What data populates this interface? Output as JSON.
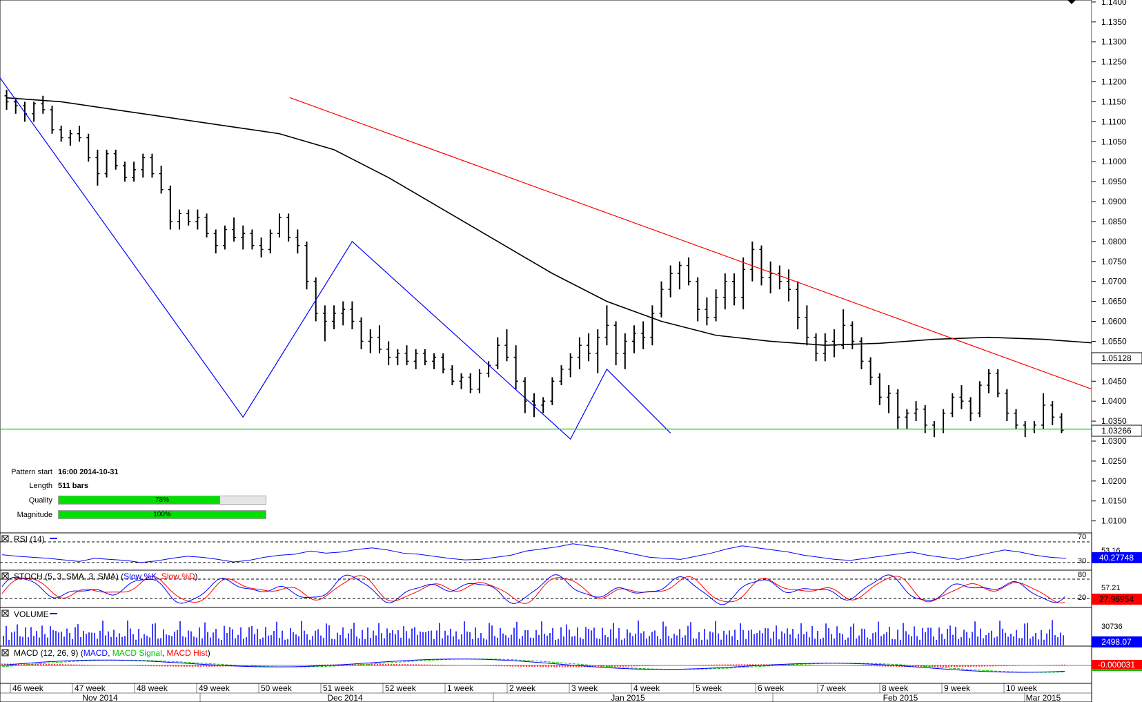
{
  "chart_data": {
    "type": "candlestick-with-indicators",
    "main": {
      "ylim": [
        1.007,
        1.1405
      ],
      "y_ticks": [
        "1.1400",
        "1.1350",
        "1.1300",
        "1.1250",
        "1.1200",
        "1.1150",
        "1.1100",
        "1.1050",
        "1.1000",
        "1.0950",
        "1.0900",
        "1.0850",
        "1.0800",
        "1.0750",
        "1.0700",
        "1.0650",
        "1.0600",
        "1.0550",
        "1.0500",
        "1.0450",
        "1.0400",
        "1.0350",
        "1.0300",
        "1.0250",
        "1.0200",
        "1.0150",
        "1.0100"
      ],
      "last_price_label": "1.03266",
      "last_price": 1.03266,
      "ma_label": "1.05128",
      "ma_value": 1.05128,
      "support_level": 1.033,
      "ohlc_bars": [
        [
          1.1165,
          1.118,
          1.113,
          1.115
        ],
        [
          1.115,
          1.116,
          1.112,
          1.114
        ],
        [
          1.114,
          1.115,
          1.11,
          1.112
        ],
        [
          1.112,
          1.115,
          1.11,
          1.1145
        ],
        [
          1.1145,
          1.1165,
          1.112,
          1.113
        ],
        [
          1.113,
          1.114,
          1.107,
          1.108
        ],
        [
          1.108,
          1.109,
          1.105,
          1.106
        ],
        [
          1.106,
          1.108,
          1.104,
          1.107
        ],
        [
          1.107,
          1.109,
          1.105,
          1.106
        ],
        [
          1.106,
          1.107,
          1.1,
          1.101
        ],
        [
          1.101,
          1.103,
          1.094,
          1.097
        ],
        [
          1.097,
          1.103,
          1.096,
          1.102
        ],
        [
          1.102,
          1.103,
          1.098,
          1.099
        ],
        [
          1.099,
          1.1,
          1.095,
          1.096
        ],
        [
          1.096,
          1.1,
          1.095,
          1.098
        ],
        [
          1.098,
          1.102,
          1.096,
          1.101
        ],
        [
          1.101,
          1.102,
          1.096,
          1.097
        ],
        [
          1.097,
          1.099,
          1.092,
          1.093
        ],
        [
          1.093,
          1.094,
          1.083,
          1.085
        ],
        [
          1.085,
          1.088,
          1.083,
          1.087
        ],
        [
          1.087,
          1.088,
          1.084,
          1.085
        ],
        [
          1.085,
          1.088,
          1.083,
          1.086
        ],
        [
          1.086,
          1.087,
          1.081,
          1.082
        ],
        [
          1.082,
          1.083,
          1.077,
          1.079
        ],
        [
          1.079,
          1.084,
          1.078,
          1.083
        ],
        [
          1.083,
          1.086,
          1.08,
          1.081
        ],
        [
          1.081,
          1.084,
          1.078,
          1.082
        ],
        [
          1.082,
          1.083,
          1.078,
          1.079
        ],
        [
          1.079,
          1.081,
          1.076,
          1.078
        ],
        [
          1.078,
          1.083,
          1.077,
          1.082
        ],
        [
          1.082,
          1.087,
          1.081,
          1.086
        ],
        [
          1.086,
          1.087,
          1.08,
          1.081
        ],
        [
          1.081,
          1.083,
          1.077,
          1.079
        ],
        [
          1.079,
          1.08,
          1.068,
          1.07
        ],
        [
          1.07,
          1.071,
          1.06,
          1.062
        ],
        [
          1.062,
          1.064,
          1.055,
          1.06
        ],
        [
          1.06,
          1.064,
          1.058,
          1.062
        ],
        [
          1.062,
          1.065,
          1.059,
          1.063
        ],
        [
          1.063,
          1.065,
          1.058,
          1.06
        ],
        [
          1.06,
          1.061,
          1.053,
          1.055
        ],
        [
          1.055,
          1.058,
          1.052,
          1.056
        ],
        [
          1.056,
          1.059,
          1.052,
          1.053
        ],
        [
          1.053,
          1.055,
          1.049,
          1.051
        ],
        [
          1.051,
          1.053,
          1.049,
          1.052
        ],
        [
          1.052,
          1.054,
          1.049,
          1.05
        ],
        [
          1.05,
          1.053,
          1.048,
          1.052
        ],
        [
          1.052,
          1.053,
          1.049,
          1.05
        ],
        [
          1.05,
          1.052,
          1.048,
          1.051
        ],
        [
          1.051,
          1.052,
          1.047,
          1.048
        ],
        [
          1.048,
          1.049,
          1.044,
          1.045
        ],
        [
          1.045,
          1.047,
          1.043,
          1.046
        ],
        [
          1.046,
          1.047,
          1.042,
          1.043
        ],
        [
          1.043,
          1.048,
          1.042,
          1.047
        ],
        [
          1.047,
          1.05,
          1.046,
          1.049
        ],
        [
          1.049,
          1.056,
          1.048,
          1.054
        ],
        [
          1.054,
          1.058,
          1.05,
          1.051
        ],
        [
          1.051,
          1.054,
          1.043,
          1.045
        ],
        [
          1.045,
          1.046,
          1.037,
          1.04
        ],
        [
          1.04,
          1.042,
          1.036,
          1.039
        ],
        [
          1.039,
          1.041,
          1.037,
          1.04
        ],
        [
          1.04,
          1.046,
          1.039,
          1.045
        ],
        [
          1.045,
          1.049,
          1.044,
          1.048
        ],
        [
          1.048,
          1.052,
          1.046,
          1.051
        ],
        [
          1.051,
          1.056,
          1.048,
          1.054
        ],
        [
          1.054,
          1.057,
          1.05,
          1.052
        ],
        [
          1.052,
          1.058,
          1.047,
          1.056
        ],
        [
          1.056,
          1.064,
          1.054,
          1.059
        ],
        [
          1.059,
          1.06,
          1.049,
          1.052
        ],
        [
          1.052,
          1.057,
          1.048,
          1.055
        ],
        [
          1.055,
          1.059,
          1.052,
          1.057
        ],
        [
          1.057,
          1.06,
          1.053,
          1.056
        ],
        [
          1.056,
          1.064,
          1.054,
          1.062
        ],
        [
          1.062,
          1.07,
          1.061,
          1.068
        ],
        [
          1.068,
          1.074,
          1.066,
          1.072
        ],
        [
          1.072,
          1.075,
          1.068,
          1.074
        ],
        [
          1.074,
          1.076,
          1.069,
          1.07
        ],
        [
          1.07,
          1.071,
          1.06,
          1.063
        ],
        [
          1.063,
          1.066,
          1.059,
          1.061
        ],
        [
          1.061,
          1.068,
          1.06,
          1.066
        ],
        [
          1.066,
          1.072,
          1.063,
          1.07
        ],
        [
          1.07,
          1.072,
          1.064,
          1.066
        ],
        [
          1.066,
          1.076,
          1.063,
          1.073
        ],
        [
          1.073,
          1.08,
          1.07,
          1.078
        ],
        [
          1.078,
          1.079,
          1.069,
          1.071
        ],
        [
          1.071,
          1.075,
          1.067,
          1.072
        ],
        [
          1.072,
          1.074,
          1.068,
          1.07
        ],
        [
          1.07,
          1.073,
          1.065,
          1.068
        ],
        [
          1.068,
          1.07,
          1.058,
          1.061
        ],
        [
          1.061,
          1.064,
          1.054,
          1.056
        ],
        [
          1.056,
          1.057,
          1.05,
          1.052
        ],
        [
          1.052,
          1.057,
          1.05,
          1.055
        ],
        [
          1.055,
          1.058,
          1.051,
          1.054
        ],
        [
          1.054,
          1.063,
          1.053,
          1.059
        ],
        [
          1.059,
          1.06,
          1.053,
          1.055
        ],
        [
          1.055,
          1.056,
          1.048,
          1.05
        ],
        [
          1.05,
          1.051,
          1.044,
          1.046
        ],
        [
          1.046,
          1.047,
          1.039,
          1.041
        ],
        [
          1.041,
          1.044,
          1.037,
          1.042
        ],
        [
          1.042,
          1.043,
          1.033,
          1.036
        ],
        [
          1.036,
          1.038,
          1.033,
          1.037
        ],
        [
          1.037,
          1.04,
          1.035,
          1.038
        ],
        [
          1.038,
          1.039,
          1.032,
          1.034
        ],
        [
          1.034,
          1.035,
          1.031,
          1.033
        ],
        [
          1.033,
          1.038,
          1.032,
          1.037
        ],
        [
          1.037,
          1.042,
          1.036,
          1.041
        ],
        [
          1.041,
          1.044,
          1.038,
          1.04
        ],
        [
          1.04,
          1.041,
          1.035,
          1.037
        ],
        [
          1.037,
          1.045,
          1.036,
          1.044
        ],
        [
          1.044,
          1.048,
          1.042,
          1.047
        ],
        [
          1.047,
          1.048,
          1.041,
          1.042
        ],
        [
          1.042,
          1.043,
          1.035,
          1.037
        ],
        [
          1.037,
          1.038,
          1.033,
          1.034
        ],
        [
          1.034,
          1.035,
          1.031,
          1.033
        ],
        [
          1.033,
          1.035,
          1.032,
          1.034
        ],
        [
          1.034,
          1.042,
          1.033,
          1.039
        ],
        [
          1.039,
          1.04,
          1.034,
          1.036
        ],
        [
          1.036,
          1.037,
          1.032,
          1.0327
        ]
      ],
      "ma_points": [
        [
          0,
          1.116
        ],
        [
          6,
          1.115
        ],
        [
          12,
          1.113
        ],
        [
          18,
          1.111
        ],
        [
          24,
          1.109
        ],
        [
          30,
          1.107
        ],
        [
          36,
          1.103
        ],
        [
          42,
          1.096
        ],
        [
          48,
          1.088
        ],
        [
          54,
          1.08
        ],
        [
          60,
          1.072
        ],
        [
          66,
          1.065
        ],
        [
          72,
          1.06
        ],
        [
          78,
          1.0565
        ],
        [
          84,
          1.055
        ],
        [
          90,
          1.054
        ],
        [
          96,
          1.0545
        ],
        [
          102,
          1.0555
        ],
        [
          108,
          1.056
        ],
        [
          114,
          1.0555
        ],
        [
          120,
          1.0545
        ],
        [
          126,
          1.053
        ],
        [
          129,
          1.0513
        ]
      ],
      "zigzag": [
        [
          0,
          1.121
        ],
        [
          26,
          1.036
        ],
        [
          38,
          1.08
        ],
        [
          62,
          1.0305
        ],
        [
          66,
          1.048
        ],
        [
          73,
          1.032
        ]
      ],
      "resistance": [
        [
          1,
          1.141
        ],
        [
          129,
          1.035
        ]
      ]
    },
    "x_axis": {
      "week_labels": [
        "46 week",
        "47 week",
        "48 week",
        "49 week",
        "50 week",
        "51 week",
        "52 week",
        "1 week",
        "2 week",
        "3 week",
        "4 week",
        "5 week",
        "6 week",
        "7 week",
        "8 week",
        "9 week",
        "10 week"
      ],
      "month_labels": [
        "Nov 2014",
        "Dec 2014",
        "Jan 2015",
        "Feb 2015",
        "Mar 2015"
      ]
    },
    "rsi": {
      "label": "RSI (14)",
      "levels": [
        "70",
        "30"
      ],
      "marker": "53.16",
      "value_label": "40.27748",
      "series": [
        45,
        42,
        40,
        38,
        35,
        32,
        38,
        36,
        34,
        30,
        33,
        38,
        42,
        40,
        36,
        31,
        34,
        40,
        44,
        46,
        52,
        48,
        50,
        55,
        58,
        54,
        48,
        46,
        42,
        38,
        35,
        36,
        40,
        44,
        52,
        56,
        60,
        66,
        62,
        58,
        52,
        46,
        40,
        38,
        36,
        42,
        48,
        56,
        62,
        58,
        54,
        50,
        44,
        40,
        36,
        34,
        38,
        42,
        46,
        50,
        44,
        40,
        36,
        42,
        48,
        54,
        50,
        44,
        40,
        38
      ]
    },
    "stoch": {
      "label": "STOCH (5, 3, SMA, 3, SMA)",
      "legend": [
        "Slow %K",
        "Slow %D"
      ],
      "levels": [
        "80",
        "20"
      ],
      "marker": "57.21",
      "value_label": "27.96954"
    },
    "volume": {
      "label": "VOLUME",
      "marker": "30736",
      "value_label": "2498.07"
    },
    "macd": {
      "label": "MACD (12, 26, 9)",
      "legend": [
        "MACD",
        "MACD Signal",
        "MACD Hist"
      ],
      "value_label": "-0.000031"
    }
  },
  "pattern_info": {
    "pattern_start_label": "Pattern start",
    "pattern_start_value": "16:00 2014-10-31",
    "length_label": "Length",
    "length_value": "511 bars",
    "quality_label": "Quality",
    "quality_value": "78%",
    "quality": 0.78,
    "magnitude_label": "Magnitude",
    "magnitude_value": "100%",
    "magnitude": 1.0
  },
  "colors": {
    "bars": "#000000",
    "ma": "#000000",
    "zigzag": "#0000ff",
    "resistance": "#ff0000",
    "support": "#00cc00",
    "value_box": "#0000ff",
    "value_box_red": "#ff0000",
    "stoch_k": "#0000ff",
    "stoch_d": "#ff0000",
    "macd": "#0000ff",
    "macd_signal": "#00c000",
    "macd_hist": "#ff0000"
  }
}
